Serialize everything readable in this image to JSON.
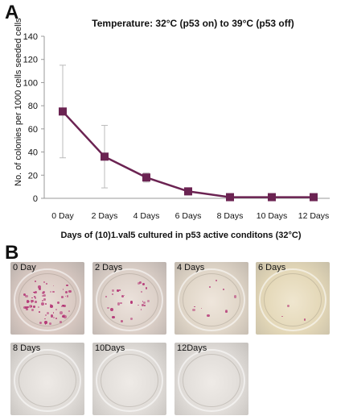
{
  "panel_a": "A",
  "panel_b": "B",
  "chart_data": {
    "type": "line",
    "title": "Temperature: 32°C (p53 on) to 39°C (p53 off)",
    "xlabel": "Days of (10)1.val5 cultured in p53 active conditons (32°C)",
    "ylabel": "No. of colonies per 1000 cells seeded cells",
    "categories": [
      "0 Day",
      "2 Days",
      "4 Days",
      "6 Days",
      "8 Days",
      "10 Days",
      "12 Days"
    ],
    "values": [
      75,
      36,
      18,
      6,
      1,
      1,
      1
    ],
    "error_bars": [
      40,
      27,
      4,
      3,
      0,
      0,
      0
    ],
    "ylim": [
      0,
      140
    ],
    "yticks": [
      0,
      20,
      40,
      60,
      80,
      100,
      120,
      140
    ],
    "grid": false,
    "line_color": "#6b2352",
    "marker": "square"
  },
  "plates": [
    {
      "label": "0 Day",
      "colonies": "many"
    },
    {
      "label": "2 Days",
      "colonies": "moderate"
    },
    {
      "label": "4 Days",
      "colonies": "few"
    },
    {
      "label": "6 Days",
      "colonies": "very few"
    },
    {
      "label": "8 Days",
      "colonies": "none"
    },
    {
      "label": "10Days",
      "colonies": "none"
    },
    {
      "label": "12Days",
      "colonies": "none"
    }
  ]
}
